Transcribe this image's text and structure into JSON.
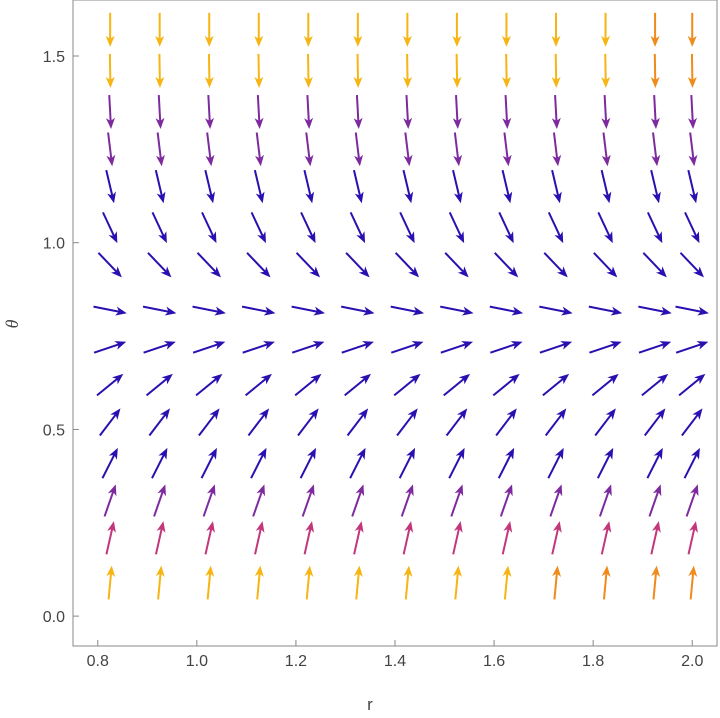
{
  "chart_data": {
    "type": "vector_field",
    "title": "",
    "xlabel": "r",
    "ylabel": "θ",
    "xlim": [
      0.75,
      2.05
    ],
    "ylim": [
      -0.08,
      1.65
    ],
    "x_ticks": [
      "0.8",
      "1.0",
      "1.2",
      "1.4",
      "1.6",
      "1.8",
      "2.0"
    ],
    "x_tick_values": [
      0.8,
      1.0,
      1.2,
      1.4,
      1.6,
      1.8,
      2.0
    ],
    "y_ticks": [
      "0.0",
      "0.5",
      "1.0",
      "1.5"
    ],
    "y_tick_values": [
      0.0,
      0.5,
      1.0,
      1.5
    ],
    "grid": false,
    "legend": "none",
    "grid_r": [
      0.825,
      0.925,
      1.025,
      1.125,
      1.225,
      1.325,
      1.425,
      1.525,
      1.625,
      1.725,
      1.825,
      1.925,
      2.0
    ],
    "grid_theta": [
      0.09,
      0.21,
      0.31,
      0.41,
      0.52,
      0.62,
      0.72,
      0.82,
      0.94,
      1.04,
      1.15,
      1.25,
      1.35,
      1.46,
      1.57
    ],
    "equilibrium_theta": 0.7854,
    "color_scale": {
      "low": "#2b0fb0",
      "mid": "#7d2a9e",
      "high_pink": "#c2367c",
      "top": "#f6b513",
      "top_hot": "#f08a1a"
    }
  }
}
